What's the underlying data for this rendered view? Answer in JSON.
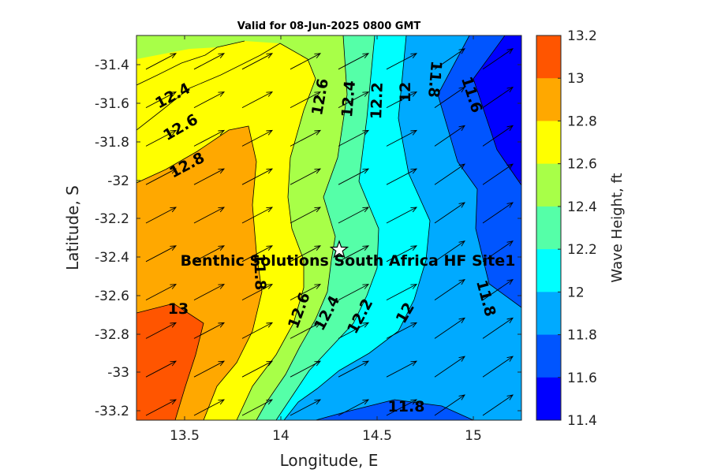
{
  "map": {
    "title": "Valid for 08-Jun-2025 0800 GMT",
    "xlabel": "Longitude, E",
    "ylabel": "Latitude, S",
    "colorbar_label": "Wave Height, ft",
    "x_ticks": [
      "13.5",
      "14",
      "14.5",
      "15"
    ],
    "y_ticks": [
      "-31.4",
      "-31.6",
      "-31.8",
      "-32",
      "-32.2",
      "-32.4",
      "-32.6",
      "-32.8",
      "-33",
      "-33.2"
    ],
    "colorbar_ticks": [
      "13.2",
      "13",
      "12.8",
      "12.6",
      "12.4",
      "12.2",
      "12",
      "11.8",
      "11.6",
      "11.4"
    ],
    "colorbar_colors": [
      "#ff5500",
      "#ffa800",
      "#ffff00",
      "#a8ff48",
      "#55ffa8",
      "#00ffff",
      "#00aaff",
      "#0055ff",
      "#0000ff"
    ],
    "site": {
      "label": "Benthic Solutions South Africa HF Site1",
      "lon": 14.3,
      "lat": -32.35
    },
    "contour_labels": [
      "12.4",
      "12.6",
      "12.8",
      "12.6",
      "12.4",
      "12.2",
      "12",
      "11.8",
      "11.6",
      "11.8",
      "13",
      "12.6",
      "12.4",
      "12.2",
      "12",
      "11.8",
      "11.8"
    ]
  },
  "chart_data": {
    "type": "heatmap",
    "title": "Valid for 08-Jun-2025 0800 GMT",
    "xlabel": "Longitude, E",
    "ylabel": "Latitude, S",
    "xlim": [
      13.25,
      15.25
    ],
    "ylim": [
      -33.25,
      -31.25
    ],
    "colorbar": {
      "label": "Wave Height, ft",
      "range": [
        11.4,
        13.2
      ],
      "step": 0.2
    },
    "contour_levels": [
      11.6,
      11.8,
      12.0,
      12.2,
      12.4,
      12.6,
      12.8,
      13.0
    ],
    "wave_direction": "towards north-east",
    "site": {
      "name": "Benthic Solutions South Africa HF Site1",
      "lon": 14.3,
      "lat": -32.35
    }
  }
}
